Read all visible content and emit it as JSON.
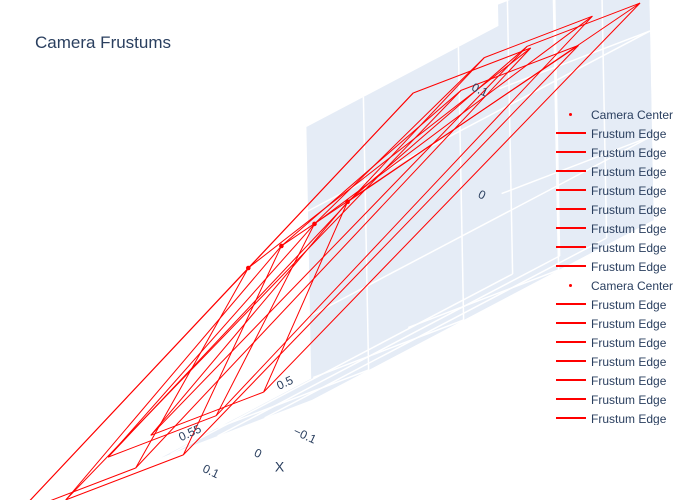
{
  "chart_data": {
    "type": "scatter3d",
    "title": "Camera Frustums",
    "line_color": "#ff0000",
    "axes": {
      "x": {
        "title": "X",
        "ticks": [
          "−0.1",
          "0",
          "0.1"
        ]
      },
      "y": {
        "title": "",
        "ticks": [
          "0.5",
          "0.55"
        ]
      },
      "z": {
        "title": "",
        "ticks": [
          "0",
          "0.1"
        ]
      }
    },
    "cameras": [
      {
        "center": [
          0.05,
          0.55,
          0.06
        ],
        "corners": [
          [
            -0.15,
            0.45,
            0.14
          ],
          [
            0.1,
            0.45,
            0.14
          ],
          [
            0.1,
            0.66,
            -0.06
          ],
          [
            -0.15,
            0.66,
            -0.06
          ]
        ]
      },
      {
        "center": [
          0.04,
          0.535,
          0.065
        ],
        "corners": [
          [
            -0.17,
            0.43,
            0.12
          ],
          [
            0.08,
            0.43,
            0.12
          ],
          [
            0.08,
            0.64,
            -0.07
          ],
          [
            -0.17,
            0.64,
            -0.07
          ]
        ]
      },
      {
        "center": [
          0.03,
          0.52,
          0.07
        ],
        "corners": [
          [
            -0.16,
            0.42,
            0.14
          ],
          [
            0.07,
            0.42,
            0.14
          ],
          [
            0.07,
            0.62,
            -0.05
          ],
          [
            -0.16,
            0.62,
            -0.05
          ]
        ]
      },
      {
        "center": [
          0.02,
          0.505,
          0.075
        ],
        "corners": [
          [
            -0.18,
            0.4,
            0.13
          ],
          [
            0.06,
            0.4,
            0.13
          ],
          [
            0.06,
            0.6,
            -0.05
          ],
          [
            -0.18,
            0.6,
            -0.05
          ]
        ]
      }
    ],
    "legend": {
      "items": [
        {
          "label": "Camera Center",
          "kind": "marker"
        },
        {
          "label": "Frustum Edge",
          "kind": "line"
        },
        {
          "label": "Frustum Edge",
          "kind": "line"
        },
        {
          "label": "Frustum Edge",
          "kind": "line"
        },
        {
          "label": "Frustum Edge",
          "kind": "line"
        },
        {
          "label": "Frustum Edge",
          "kind": "line"
        },
        {
          "label": "Frustum Edge",
          "kind": "line"
        },
        {
          "label": "Frustum Edge",
          "kind": "line"
        },
        {
          "label": "Frustum Edge",
          "kind": "line"
        },
        {
          "label": "Camera Center",
          "kind": "marker"
        },
        {
          "label": "Frustum Edge",
          "kind": "line"
        },
        {
          "label": "Frustum Edge",
          "kind": "line"
        },
        {
          "label": "Frustum Edge",
          "kind": "line"
        },
        {
          "label": "Frustum Edge",
          "kind": "line"
        },
        {
          "label": "Frustum Edge",
          "kind": "line"
        },
        {
          "label": "Frustum Edge",
          "kind": "line"
        },
        {
          "label": "Frustum Edge",
          "kind": "line"
        }
      ]
    }
  }
}
